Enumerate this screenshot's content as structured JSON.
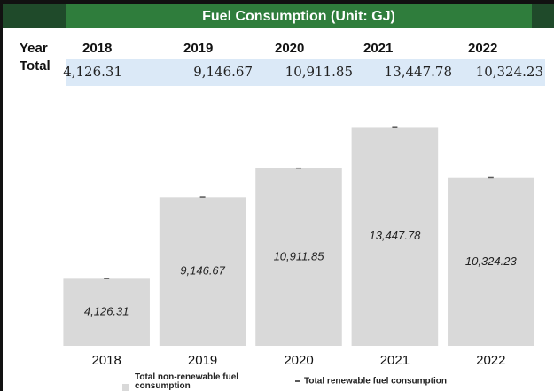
{
  "table": {
    "title": "Fuel Consumption (Unit: GJ)",
    "row_headers": [
      "Year",
      "Total"
    ],
    "years": [
      "2018",
      "2019",
      "2020",
      "2021",
      "2022"
    ],
    "totals": [
      "4,126.31",
      "9,146.67",
      "10,911.85",
      "13,447.78",
      "10,324.23"
    ]
  },
  "chart_data": {
    "type": "bar",
    "stacked": true,
    "categories": [
      "2018",
      "2019",
      "2020",
      "2021",
      "2022"
    ],
    "series": [
      {
        "name": "Total non-renewable fuel consumption",
        "color": "#d9d9d9",
        "values": [
          4126.31,
          9146.67,
          10911.85,
          13447.78,
          10324.23
        ],
        "value_labels": [
          "4,126.31",
          "9,146.67",
          "10,911.85",
          "13,447.78",
          "10,324.23"
        ]
      },
      {
        "name": "Total renewable fuel consumption",
        "color": "#595959",
        "values": [
          0,
          0,
          0,
          0,
          0
        ]
      }
    ],
    "ylim": [
      0,
      15000
    ]
  }
}
